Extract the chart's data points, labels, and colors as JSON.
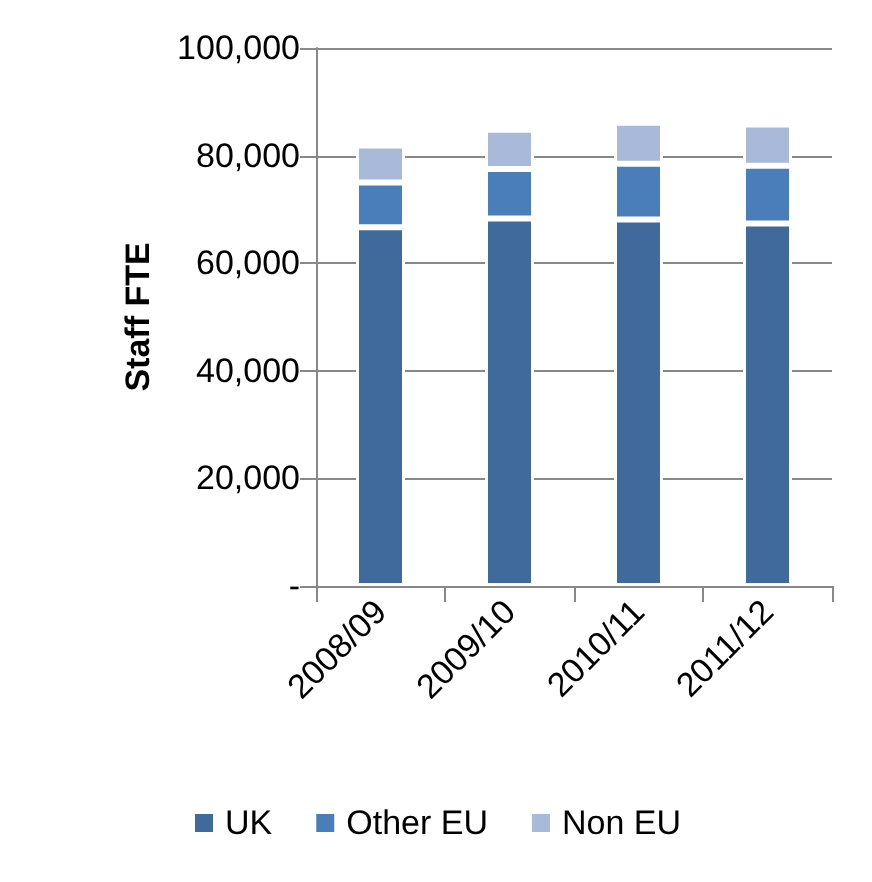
{
  "chart_data": {
    "type": "bar",
    "stacked": true,
    "ylabel": "Staff FTE",
    "categories": [
      "2008/09",
      "2009/10",
      "2010/11",
      "2011/12"
    ],
    "series": [
      {
        "name": "UK",
        "color": "#3f6a9b",
        "values": [
          66700,
          68300,
          68100,
          67400
        ]
      },
      {
        "name": "Other EU",
        "color": "#4a7ebb",
        "values": [
          8300,
          9200,
          10400,
          10700
        ]
      },
      {
        "name": "Non EU",
        "color": "#a8b9da",
        "values": [
          6900,
          7300,
          7600,
          7700
        ]
      }
    ],
    "ylim": [
      0,
      100000
    ],
    "yticks": [
      {
        "value": 0,
        "label": "-"
      },
      {
        "value": 20000,
        "label": "20,000"
      },
      {
        "value": 40000,
        "label": "40,000"
      },
      {
        "value": 60000,
        "label": "60,000"
      },
      {
        "value": 80000,
        "label": "80,000"
      },
      {
        "value": 100000,
        "label": "100,000"
      }
    ],
    "grid": "y",
    "legend": "bottom"
  }
}
